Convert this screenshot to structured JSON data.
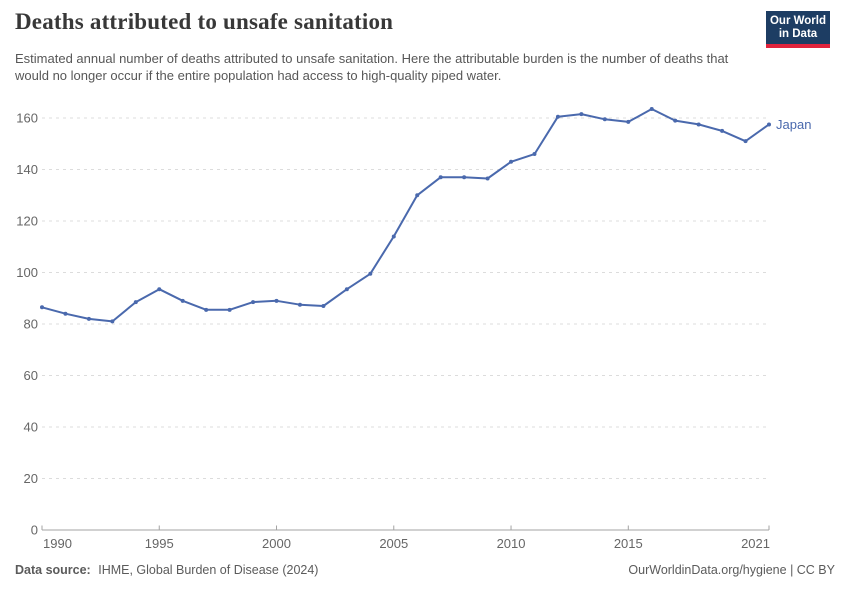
{
  "header": {
    "title": "Deaths attributed to unsafe sanitation",
    "subtitle": "Estimated annual number of deaths attributed to unsafe sanitation. Here the attributable burden is the number of deaths that would no longer occur if the entire population had access to high-quality piped water.",
    "logo": {
      "line1": "Our World",
      "line2": "in Data"
    }
  },
  "chart_data": {
    "type": "line",
    "title": "Deaths attributed to unsafe sanitation",
    "x": [
      1990,
      1991,
      1992,
      1993,
      1994,
      1995,
      1996,
      1997,
      1998,
      1999,
      2000,
      2001,
      2002,
      2003,
      2004,
      2005,
      2006,
      2007,
      2008,
      2009,
      2010,
      2011,
      2012,
      2013,
      2014,
      2015,
      2016,
      2017,
      2018,
      2019,
      2020,
      2021
    ],
    "series": [
      {
        "name": "Japan",
        "values": [
          86.5,
          84,
          82,
          81,
          88.5,
          93.5,
          89,
          85.5,
          85.5,
          88.5,
          89,
          87.5,
          87,
          93.5,
          99.5,
          114,
          130,
          137,
          137,
          136.5,
          143,
          146,
          160.5,
          161.5,
          159.5,
          158.5,
          163.5,
          159,
          157.5,
          155,
          151,
          157.5
        ],
        "color": "#4a69ad"
      }
    ],
    "xticks": [
      1990,
      1995,
      2000,
      2005,
      2010,
      2015,
      2021
    ],
    "yticks": [
      0,
      20,
      40,
      60,
      80,
      100,
      120,
      140,
      160
    ],
    "ylim": [
      0,
      160
    ],
    "xlabel": "",
    "ylabel": "",
    "grid": "horizontal-dashed",
    "legend_position": "end-of-line-label",
    "colors": {
      "grid": "#dcdcdc",
      "axis": "#a3a3a3",
      "tick_text": "#666666"
    }
  },
  "footer": {
    "source_label": "Data source:",
    "source_value": "IHME, Global Burden of Disease (2024)",
    "credit": "OurWorldinData.org/hygiene | CC BY"
  }
}
